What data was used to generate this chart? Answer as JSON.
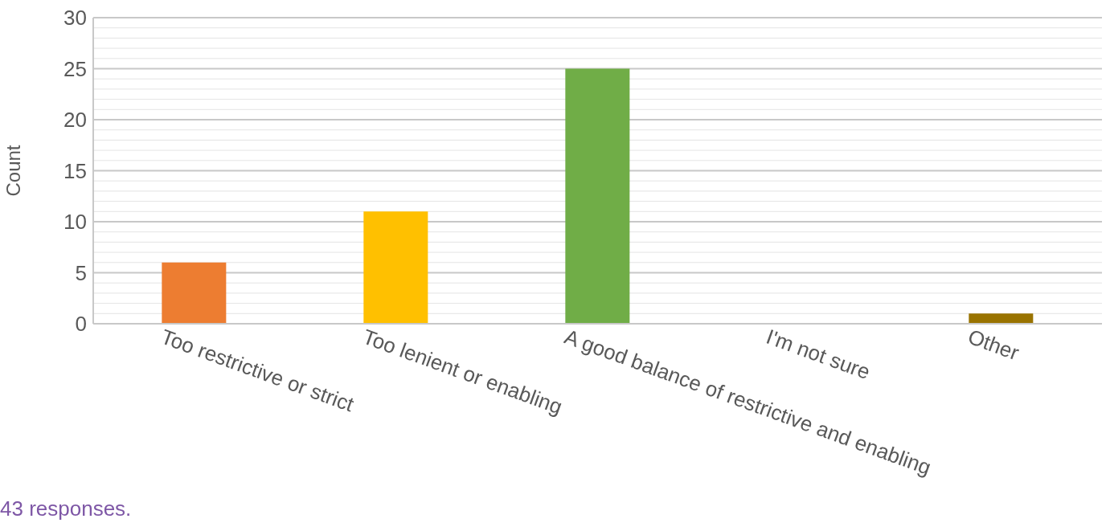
{
  "chart_data": {
    "type": "bar",
    "ylabel": "Count",
    "categories": [
      "Too restrictive or strict",
      "Too lenient or enabling",
      "A good balance of restrictive and enabling",
      "I'm not sure",
      "Other"
    ],
    "values": [
      6,
      11,
      25,
      0,
      1
    ],
    "colors": [
      "#ed7d31",
      "#ffc000",
      "#70ad47",
      "#5b9bd5",
      "#997300"
    ],
    "ylim": [
      0,
      30
    ],
    "yticks": [
      0,
      {
        "value": 1,
        "label": null
      },
      {
        "value": 2,
        "label": null
      },
      {
        "value": 3,
        "label": null
      },
      {
        "value": 4,
        "label": null
      },
      5,
      {
        "value": 6,
        "label": null
      },
      {
        "value": 7,
        "label": null
      },
      {
        "value": 8,
        "label": null
      },
      {
        "value": 9,
        "label": null
      },
      10,
      {
        "value": 11,
        "label": null
      },
      {
        "value": 12,
        "label": null
      },
      {
        "value": 13,
        "label": null
      },
      {
        "value": 14,
        "label": null
      },
      15,
      {
        "value": 16,
        "label": null
      },
      {
        "value": 17,
        "label": null
      },
      {
        "value": 18,
        "label": null
      },
      {
        "value": 19,
        "label": null
      },
      20,
      {
        "value": 21,
        "label": null
      },
      {
        "value": 22,
        "label": null
      },
      {
        "value": 23,
        "label": null
      },
      {
        "value": 24,
        "label": null
      },
      25,
      {
        "value": 26,
        "label": null
      },
      {
        "value": 27,
        "label": null
      },
      {
        "value": 28,
        "label": null
      },
      {
        "value": 29,
        "label": null
      },
      30
    ],
    "grid": "y",
    "annotations": [
      "43 responses."
    ]
  }
}
